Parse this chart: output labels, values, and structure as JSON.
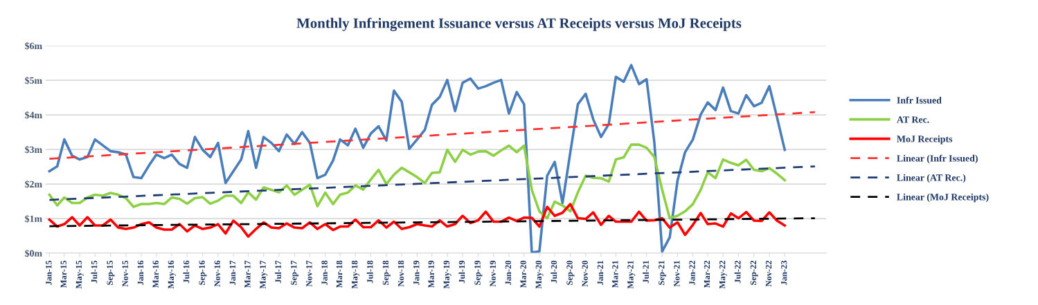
{
  "chart_data": {
    "type": "line",
    "title": "Monthly Infringement Issuance versus AT Receipts versus MoJ Receipts",
    "x": [
      "2015-01",
      "2015-02",
      "2015-03",
      "2015-04",
      "2015-05",
      "2015-06",
      "2015-07",
      "2015-08",
      "2015-09",
      "2015-10",
      "2015-11",
      "2015-12",
      "2016-01",
      "2016-02",
      "2016-03",
      "2016-04",
      "2016-05",
      "2016-06",
      "2016-07",
      "2016-08",
      "2016-09",
      "2016-10",
      "2016-11",
      "2016-12",
      "2017-01",
      "2017-02",
      "2017-03",
      "2017-04",
      "2017-05",
      "2017-06",
      "2017-07",
      "2017-08",
      "2017-09",
      "2017-10",
      "2017-11",
      "2017-12",
      "2018-01",
      "2018-02",
      "2018-03",
      "2018-04",
      "2018-05",
      "2018-06",
      "2018-07",
      "2018-08",
      "2018-09",
      "2018-10",
      "2018-11",
      "2018-12",
      "2019-01",
      "2019-02",
      "2019-03",
      "2019-04",
      "2019-05",
      "2019-06",
      "2019-07",
      "2019-08",
      "2019-09",
      "2019-10",
      "2019-11",
      "2019-12",
      "2020-01",
      "2020-02",
      "2020-03",
      "2020-04",
      "2020-05",
      "2020-06",
      "2020-07",
      "2020-08",
      "2020-09",
      "2020-10",
      "2020-11",
      "2020-12",
      "2021-01",
      "2021-02",
      "2021-03",
      "2021-04",
      "2021-05",
      "2021-06",
      "2021-07",
      "2021-08",
      "2021-09",
      "2021-10",
      "2021-11",
      "2021-12",
      "2022-01",
      "2022-02",
      "2022-03",
      "2022-04",
      "2022-05",
      "2022-06",
      "2022-07",
      "2022-08",
      "2022-09",
      "2022-10",
      "2022-11",
      "2022-12",
      "2023-01"
    ],
    "series": [
      {
        "name": "Infr Issued",
        "color": "#4a7ebb",
        "values": [
          2.37,
          2.51,
          3.29,
          2.82,
          2.71,
          2.78,
          3.29,
          3.12,
          2.95,
          2.92,
          2.85,
          2.2,
          2.17,
          2.54,
          2.85,
          2.75,
          2.85,
          2.58,
          2.47,
          3.36,
          2.99,
          2.78,
          3.19,
          2.03,
          2.37,
          2.71,
          3.53,
          2.47,
          3.36,
          3.19,
          2.95,
          3.43,
          3.16,
          3.5,
          3.19,
          2.17,
          2.27,
          2.68,
          3.29,
          3.12,
          3.6,
          3.05,
          3.46,
          3.67,
          3.26,
          4.7,
          4.38,
          3.02,
          3.29,
          3.57,
          4.29,
          4.52,
          5.01,
          4.11,
          4.93,
          5.05,
          4.76,
          4.83,
          4.93,
          5.01,
          4.04,
          4.66,
          4.31,
          0.02,
          0.05,
          2.24,
          2.64,
          1.45,
          2.92,
          4.31,
          4.61,
          3.87,
          3.36,
          3.74,
          5.1,
          4.96,
          5.44,
          4.89,
          5.03,
          3.19,
          0.05,
          0.46,
          2.1,
          2.92,
          3.29,
          4.01,
          4.36,
          4.14,
          4.79,
          4.11,
          4.04,
          4.57,
          4.25,
          4.35,
          4.83,
          3.94,
          2.99
        ]
      },
      {
        "name": "AT Rec.",
        "color": "#8dcf45",
        "values": [
          1.69,
          1.38,
          1.61,
          1.45,
          1.45,
          1.61,
          1.69,
          1.66,
          1.74,
          1.69,
          1.59,
          1.34,
          1.42,
          1.42,
          1.45,
          1.42,
          1.61,
          1.57,
          1.43,
          1.59,
          1.62,
          1.43,
          1.52,
          1.66,
          1.66,
          1.45,
          1.76,
          1.55,
          1.9,
          1.83,
          1.76,
          1.96,
          1.69,
          1.83,
          1.98,
          1.36,
          1.75,
          1.42,
          1.69,
          1.75,
          1.96,
          1.84,
          2.13,
          2.41,
          2.0,
          2.27,
          2.47,
          2.34,
          2.2,
          2.03,
          2.32,
          2.34,
          2.99,
          2.64,
          2.99,
          2.85,
          2.94,
          2.95,
          2.82,
          2.97,
          3.11,
          2.92,
          3.11,
          1.83,
          1.21,
          1.01,
          1.49,
          1.38,
          1.21,
          1.76,
          2.24,
          2.18,
          2.17,
          2.07,
          2.71,
          2.77,
          3.14,
          3.14,
          3.05,
          2.78,
          1.83,
          1.01,
          1.08,
          1.21,
          1.42,
          1.83,
          2.34,
          2.17,
          2.71,
          2.61,
          2.54,
          2.7,
          2.41,
          2.37,
          2.46,
          2.3,
          2.11
        ]
      },
      {
        "name": "MoJ Receipts",
        "color": "#ff0000",
        "values": [
          0.97,
          0.77,
          0.84,
          1.04,
          0.8,
          1.04,
          0.8,
          0.8,
          0.97,
          0.74,
          0.7,
          0.74,
          0.84,
          0.89,
          0.74,
          0.68,
          0.68,
          0.84,
          0.63,
          0.8,
          0.7,
          0.74,
          0.84,
          0.57,
          0.94,
          0.75,
          0.48,
          0.7,
          0.89,
          0.74,
          0.72,
          0.86,
          0.74,
          0.72,
          0.89,
          0.7,
          0.84,
          0.67,
          0.77,
          0.77,
          0.97,
          0.75,
          0.75,
          0.95,
          0.74,
          0.91,
          0.7,
          0.75,
          0.84,
          0.8,
          0.77,
          0.95,
          0.77,
          0.84,
          1.08,
          0.87,
          0.95,
          1.2,
          0.91,
          0.91,
          1.03,
          0.93,
          1.03,
          1.02,
          0.77,
          1.34,
          1.08,
          1.17,
          1.42,
          1.01,
          0.99,
          1.18,
          0.82,
          1.08,
          0.91,
          0.91,
          0.91,
          1.2,
          0.94,
          0.95,
          1.01,
          0.74,
          0.89,
          0.53,
          0.82,
          1.16,
          0.84,
          0.86,
          0.77,
          1.15,
          1.01,
          1.19,
          0.94,
          0.93,
          1.18,
          0.94,
          0.8
        ]
      },
      {
        "name": "Linear (Infr Issued)",
        "color": "#ff3030",
        "line_style": "dashed",
        "x": [
          "2015-01",
          "2023-05"
        ],
        "values": [
          2.73,
          4.08
        ]
      },
      {
        "name": "Linear (AT Rec.)",
        "color": "#1f3c73",
        "line_style": "dashed",
        "x": [
          "2015-01",
          "2023-05"
        ],
        "values": [
          1.54,
          2.51
        ]
      },
      {
        "name": "Linear (MoJ Receipts)",
        "color": "#000000",
        "line_style": "dashed",
        "x": [
          "2015-01",
          "2023-05"
        ],
        "values": [
          0.78,
          1.01
        ]
      }
    ],
    "xlim": [
      "2014-12-17",
      "2023-06-15"
    ],
    "xticks": [
      {
        "value": "2015-01",
        "label": "Jan-15"
      },
      {
        "value": "2015-03",
        "label": "Mar-15"
      },
      {
        "value": "2015-05",
        "label": "May-15"
      },
      {
        "value": "2015-07",
        "label": "Jul-15"
      },
      {
        "value": "2015-09",
        "label": "Sep-15"
      },
      {
        "value": "2015-11",
        "label": "Nov-15"
      },
      {
        "value": "2016-01",
        "label": "Jan-16"
      },
      {
        "value": "2016-03",
        "label": "Mar-16"
      },
      {
        "value": "2016-05",
        "label": "May-16"
      },
      {
        "value": "2016-07",
        "label": "Jul-16"
      },
      {
        "value": "2016-09",
        "label": "Sep-16"
      },
      {
        "value": "2016-11",
        "label": "Nov-16"
      },
      {
        "value": "2017-01",
        "label": "Jan-17"
      },
      {
        "value": "2017-03",
        "label": "Mar-17"
      },
      {
        "value": "2017-05",
        "label": "May-17"
      },
      {
        "value": "2017-07",
        "label": "Jul-17"
      },
      {
        "value": "2017-09",
        "label": "Sep-17"
      },
      {
        "value": "2017-11",
        "label": "Nov-17"
      },
      {
        "value": "2018-01",
        "label": "Jan-18"
      },
      {
        "value": "2018-03",
        "label": "Mar-18"
      },
      {
        "value": "2018-05",
        "label": "May-18"
      },
      {
        "value": "2018-07",
        "label": "Jul-18"
      },
      {
        "value": "2018-09",
        "label": "Sep-18"
      },
      {
        "value": "2018-11",
        "label": "Nov-18"
      },
      {
        "value": "2019-01",
        "label": "Jan-19"
      },
      {
        "value": "2019-03",
        "label": "Mar-19"
      },
      {
        "value": "2019-05",
        "label": "May-19"
      },
      {
        "value": "2019-07",
        "label": "Jul-19"
      },
      {
        "value": "2019-09",
        "label": "Sep-19"
      },
      {
        "value": "2019-11",
        "label": "Nov-19"
      },
      {
        "value": "2020-01",
        "label": "Jan-20"
      },
      {
        "value": "2020-03",
        "label": "Mar-20"
      },
      {
        "value": "2020-05",
        "label": "May-20"
      },
      {
        "value": "2020-07",
        "label": "Jul-20"
      },
      {
        "value": "2020-09",
        "label": "Sep-20"
      },
      {
        "value": "2020-11",
        "label": "Nov-20"
      },
      {
        "value": "2021-01",
        "label": "Jan-21"
      },
      {
        "value": "2021-03",
        "label": "Mar-21"
      },
      {
        "value": "2021-05",
        "label": "May-21"
      },
      {
        "value": "2021-07",
        "label": "Jul-21"
      },
      {
        "value": "2021-09",
        "label": "Sep-21"
      },
      {
        "value": "2021-11",
        "label": "Nov-21"
      },
      {
        "value": "2022-01",
        "label": "Jan-22"
      },
      {
        "value": "2022-03",
        "label": "Mar-22"
      },
      {
        "value": "2022-05",
        "label": "May-22"
      },
      {
        "value": "2022-07",
        "label": "Jul-22"
      },
      {
        "value": "2022-09",
        "label": "Sep-22"
      },
      {
        "value": "2022-11",
        "label": "Nov-22"
      },
      {
        "value": "2023-01",
        "label": "Jan-23"
      }
    ],
    "ylim": [
      0,
      6
    ],
    "yticks": [
      {
        "value": 0,
        "label": "$0m"
      },
      {
        "value": 1,
        "label": "$1m"
      },
      {
        "value": 2,
        "label": "$2m"
      },
      {
        "value": 3,
        "label": "$3m"
      },
      {
        "value": 4,
        "label": "$4m"
      },
      {
        "value": 5,
        "label": "$5m"
      },
      {
        "value": 6,
        "label": "$6m"
      }
    ],
    "grid": "y",
    "legend": "right",
    "marker": "none",
    "line_style": "solid"
  }
}
